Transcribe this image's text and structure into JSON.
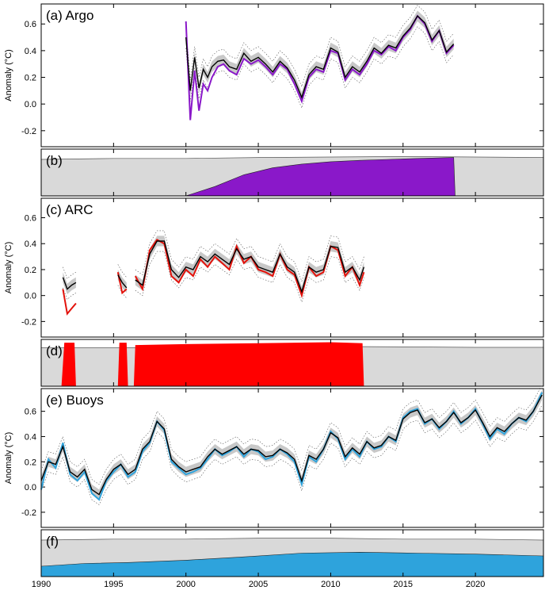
{
  "chart_data": [
    {
      "id": "a",
      "type": "line",
      "title": "(a) Argo",
      "ylabel": "Anomaly (°C)",
      "xlim": [
        1990,
        2024.7
      ],
      "ylim": [
        -0.32,
        0.75
      ],
      "yticks": [
        -0.2,
        0.0,
        0.2,
        0.4,
        0.6
      ],
      "ytick_labels": [
        "-0.2",
        "0.0",
        "0.2",
        "0.4",
        "0.6"
      ],
      "series_color": "#8a18c9",
      "series": [
        {
          "role": "subset",
          "x": [
            2000.0,
            2000.3,
            2000.6,
            2000.9,
            2001.2,
            2001.5,
            2001.8,
            2002.2,
            2002.6,
            2003.0,
            2003.5,
            2004.0,
            2004.5,
            2005.0,
            2005.5,
            2006.0,
            2006.5,
            2007.0,
            2007.5,
            2008.0,
            2008.5,
            2009.0,
            2009.5,
            2010.0,
            2010.5,
            2011.0,
            2011.5,
            2012.0,
            2012.5,
            2013.0,
            2013.5,
            2014.0,
            2014.5,
            2015.0,
            2015.5,
            2016.0,
            2016.5,
            2017.0,
            2017.5,
            2018.0,
            2018.5
          ],
          "y": [
            0.62,
            -0.12,
            0.25,
            -0.05,
            0.15,
            0.1,
            0.2,
            0.28,
            0.3,
            0.25,
            0.22,
            0.34,
            0.3,
            0.33,
            0.28,
            0.22,
            0.3,
            0.26,
            0.15,
            0.02,
            0.2,
            0.26,
            0.24,
            0.4,
            0.38,
            0.18,
            0.26,
            0.22,
            0.3,
            0.4,
            0.37,
            0.43,
            0.4,
            0.5,
            0.56,
            0.66,
            0.6,
            0.47,
            0.55,
            0.38,
            0.44
          ]
        },
        {
          "role": "full",
          "x": [
            2000.0,
            2000.3,
            2000.6,
            2000.9,
            2001.2,
            2001.5,
            2001.8,
            2002.2,
            2002.6,
            2003.0,
            2003.5,
            2004.0,
            2004.5,
            2005.0,
            2005.5,
            2006.0,
            2006.5,
            2007.0,
            2007.5,
            2008.0,
            2008.5,
            2009.0,
            2009.5,
            2010.0,
            2010.5,
            2011.0,
            2011.5,
            2012.0,
            2012.5,
            2013.0,
            2013.5,
            2014.0,
            2014.5,
            2015.0,
            2015.5,
            2016.0,
            2016.5,
            2017.0,
            2017.5,
            2018.0,
            2018.5
          ],
          "y": [
            0.5,
            0.1,
            0.35,
            0.12,
            0.26,
            0.2,
            0.28,
            0.32,
            0.33,
            0.28,
            0.26,
            0.38,
            0.32,
            0.35,
            0.3,
            0.24,
            0.32,
            0.27,
            0.18,
            0.05,
            0.22,
            0.28,
            0.26,
            0.42,
            0.39,
            0.2,
            0.28,
            0.24,
            0.32,
            0.42,
            0.38,
            0.44,
            0.42,
            0.51,
            0.57,
            0.66,
            0.61,
            0.48,
            0.55,
            0.39,
            0.45
          ]
        }
      ]
    },
    {
      "id": "b",
      "type": "area",
      "title": "(b)",
      "xlim": [
        1990,
        2024.7
      ],
      "ylim": [
        0,
        1
      ],
      "fill_color": "#8a18c9",
      "total": {
        "x": [
          1990,
          1995,
          2000,
          2005,
          2010,
          2015,
          2020,
          2024.7
        ],
        "y": [
          0.78,
          0.8,
          0.8,
          0.82,
          0.83,
          0.84,
          0.83,
          0.82
        ]
      },
      "subset": {
        "x": [
          2000,
          2002,
          2004,
          2006,
          2008,
          2010,
          2012,
          2014,
          2016,
          2018.5,
          2018.6
        ],
        "y": [
          0.0,
          0.2,
          0.45,
          0.6,
          0.68,
          0.73,
          0.76,
          0.78,
          0.8,
          0.82,
          0.0
        ]
      }
    },
    {
      "id": "c",
      "type": "line",
      "title": "(c) ARC",
      "ylabel": "Anomaly (°C)",
      "xlim": [
        1990,
        2024.7
      ],
      "ylim": [
        -0.32,
        0.75
      ],
      "yticks": [
        -0.2,
        0.0,
        0.2,
        0.4,
        0.6
      ],
      "ytick_labels": [
        "-0.2",
        "0.0",
        "0.2",
        "0.4",
        "0.6"
      ],
      "series_color": "#e3120b",
      "series": [
        {
          "role": "subset",
          "segments": [
            {
              "x": [
                1991.5,
                1991.8,
                1992.1,
                1992.4
              ],
              "y": [
                0.05,
                -0.14,
                -0.1,
                -0.06
              ]
            },
            {
              "x": [
                1995.3,
                1995.6,
                1995.9
              ],
              "y": [
                0.18,
                0.02,
                0.05
              ]
            },
            {
              "x": [
                1996.5,
                1997.0,
                1997.5,
                1998.0,
                1998.5,
                1999.0,
                1999.5,
                2000.0,
                2000.5,
                2001.0,
                2001.5,
                2002.0,
                2002.5,
                2003.0,
                2003.5,
                2004.0,
                2004.5,
                2005.0,
                2005.5,
                2006.0,
                2006.5,
                2007.0,
                2007.5,
                2008.0,
                2008.5,
                2009.0,
                2009.5,
                2010.0,
                2010.5,
                2011.0,
                2011.5,
                2012.0,
                2012.3
              ],
              "y": [
                0.15,
                0.05,
                0.35,
                0.43,
                0.4,
                0.15,
                0.1,
                0.2,
                0.15,
                0.28,
                0.22,
                0.3,
                0.25,
                0.2,
                0.38,
                0.25,
                0.3,
                0.2,
                0.18,
                0.15,
                0.32,
                0.2,
                0.16,
                0.0,
                0.22,
                0.15,
                0.18,
                0.38,
                0.35,
                0.15,
                0.22,
                0.08,
                0.18
              ]
            }
          ]
        },
        {
          "role": "full",
          "segments": [
            {
              "x": [
                1991.5,
                1991.8,
                1992.1,
                1992.4
              ],
              "y": [
                0.14,
                0.05,
                0.08,
                0.1
              ]
            },
            {
              "x": [
                1995.3,
                1995.6,
                1995.9
              ],
              "y": [
                0.16,
                0.1,
                0.06
              ]
            },
            {
              "x": [
                1996.5,
                1997.0,
                1997.5,
                1998.0,
                1998.5,
                1999.0,
                1999.5,
                2000.0,
                2000.5,
                2001.0,
                2001.5,
                2002.0,
                2002.5,
                2003.0,
                2003.5,
                2004.0,
                2004.5,
                2005.0,
                2005.5,
                2006.0,
                2006.5,
                2007.0,
                2007.5,
                2008.0,
                2008.5,
                2009.0,
                2009.5,
                2010.0,
                2010.5,
                2011.0,
                2011.5,
                2012.0,
                2012.3
              ],
              "y": [
                0.12,
                0.08,
                0.32,
                0.42,
                0.42,
                0.2,
                0.14,
                0.22,
                0.2,
                0.3,
                0.26,
                0.32,
                0.28,
                0.24,
                0.36,
                0.28,
                0.3,
                0.22,
                0.2,
                0.18,
                0.32,
                0.22,
                0.18,
                0.03,
                0.22,
                0.18,
                0.2,
                0.38,
                0.37,
                0.18,
                0.22,
                0.12,
                0.22
              ]
            }
          ]
        }
      ]
    },
    {
      "id": "d",
      "type": "area",
      "title": "(d)",
      "xlim": [
        1990,
        2024.7
      ],
      "ylim": [
        0,
        1
      ],
      "fill_color": "#ff0000",
      "total": {
        "x": [
          1990,
          1995,
          2000,
          2005,
          2010,
          2015,
          2020,
          2024.7
        ],
        "y": [
          0.82,
          0.82,
          0.83,
          0.84,
          0.85,
          0.84,
          0.83,
          0.83
        ]
      },
      "subset_blocks": [
        {
          "x": [
            1991.4,
            1991.6,
            1992.3,
            1992.4
          ],
          "y": [
            0.0,
            0.93,
            0.93,
            0.0
          ]
        },
        {
          "x": [
            1995.3,
            1995.4,
            1995.9,
            1996.0
          ],
          "y": [
            0.0,
            0.93,
            0.93,
            0.0
          ]
        },
        {
          "x": [
            1996.4,
            1996.5,
            2000,
            2005,
            2010,
            2012.2,
            2012.3
          ],
          "y": [
            0.0,
            0.88,
            0.9,
            0.92,
            0.94,
            0.92,
            0.0
          ]
        }
      ]
    },
    {
      "id": "e",
      "type": "line",
      "title": "(e) Buoys",
      "ylabel": "Anomaly (°C)",
      "xlim": [
        1990,
        2024.7
      ],
      "ylim": [
        -0.32,
        0.78
      ],
      "yticks": [
        -0.2,
        0.0,
        0.2,
        0.4,
        0.6
      ],
      "ytick_labels": [
        "-0.2",
        "0.0",
        "0.2",
        "0.4",
        "0.6"
      ],
      "series_color": "#2ea3dc",
      "series": [
        {
          "role": "subset",
          "x": [
            1990.0,
            1990.5,
            1991.0,
            1991.5,
            1992.0,
            1992.5,
            1993.0,
            1993.5,
            1994.0,
            1994.5,
            1995.0,
            1995.5,
            1996.0,
            1996.5,
            1997.0,
            1997.5,
            1998.0,
            1998.5,
            1999.0,
            1999.5,
            2000.0,
            2000.5,
            2001.0,
            2001.5,
            2002.0,
            2002.5,
            2003.0,
            2003.5,
            2004.0,
            2004.5,
            2005.0,
            2005.5,
            2006.0,
            2006.5,
            2007.0,
            2007.5,
            2008.0,
            2008.5,
            2009.0,
            2009.5,
            2010.0,
            2010.5,
            2011.0,
            2011.5,
            2012.0,
            2012.5,
            2013.0,
            2013.5,
            2014.0,
            2014.5,
            2015.0,
            2015.5,
            2016.0,
            2016.5,
            2017.0,
            2017.5,
            2018.0,
            2018.5,
            2019.0,
            2019.5,
            2020.0,
            2020.5,
            2021.0,
            2021.5,
            2022.0,
            2022.5,
            2023.0,
            2023.5,
            2024.0,
            2024.6
          ],
          "y": [
            -0.02,
            0.22,
            0.15,
            0.35,
            0.1,
            0.05,
            0.12,
            -0.05,
            -0.1,
            0.05,
            0.12,
            0.18,
            0.08,
            0.12,
            0.28,
            0.35,
            0.52,
            0.45,
            0.2,
            0.15,
            0.1,
            0.12,
            0.15,
            0.22,
            0.3,
            0.25,
            0.28,
            0.32,
            0.24,
            0.3,
            0.28,
            0.22,
            0.24,
            0.3,
            0.26,
            0.2,
            0.02,
            0.24,
            0.2,
            0.3,
            0.44,
            0.38,
            0.22,
            0.3,
            0.24,
            0.36,
            0.3,
            0.32,
            0.4,
            0.36,
            0.55,
            0.6,
            0.62,
            0.5,
            0.54,
            0.46,
            0.52,
            0.6,
            0.5,
            0.55,
            0.62,
            0.5,
            0.38,
            0.46,
            0.42,
            0.5,
            0.55,
            0.52,
            0.6,
            0.75
          ]
        },
        {
          "role": "full",
          "x": [
            1990.0,
            1990.5,
            1991.0,
            1991.5,
            1992.0,
            1992.5,
            1993.0,
            1993.5,
            1994.0,
            1994.5,
            1995.0,
            1995.5,
            1996.0,
            1996.5,
            1997.0,
            1997.5,
            1998.0,
            1998.5,
            1999.0,
            1999.5,
            2000.0,
            2000.5,
            2001.0,
            2001.5,
            2002.0,
            2002.5,
            2003.0,
            2003.5,
            2004.0,
            2004.5,
            2005.0,
            2005.5,
            2006.0,
            2006.5,
            2007.0,
            2007.5,
            2008.0,
            2008.5,
            2009.0,
            2009.5,
            2010.0,
            2010.5,
            2011.0,
            2011.5,
            2012.0,
            2012.5,
            2013.0,
            2013.5,
            2014.0,
            2014.5,
            2015.0,
            2015.5,
            2016.0,
            2016.5,
            2017.0,
            2017.5,
            2018.0,
            2018.5,
            2019.0,
            2019.5,
            2020.0,
            2020.5,
            2021.0,
            2021.5,
            2022.0,
            2022.5,
            2023.0,
            2023.5,
            2024.0,
            2024.6
          ],
          "y": [
            0.05,
            0.2,
            0.18,
            0.32,
            0.12,
            0.08,
            0.14,
            -0.02,
            -0.06,
            0.06,
            0.14,
            0.18,
            0.1,
            0.14,
            0.3,
            0.36,
            0.52,
            0.46,
            0.22,
            0.16,
            0.12,
            0.14,
            0.16,
            0.24,
            0.3,
            0.26,
            0.29,
            0.32,
            0.26,
            0.3,
            0.29,
            0.24,
            0.25,
            0.3,
            0.27,
            0.22,
            0.05,
            0.25,
            0.22,
            0.3,
            0.43,
            0.39,
            0.24,
            0.31,
            0.26,
            0.36,
            0.31,
            0.33,
            0.4,
            0.37,
            0.54,
            0.59,
            0.61,
            0.51,
            0.54,
            0.47,
            0.52,
            0.59,
            0.51,
            0.55,
            0.61,
            0.51,
            0.4,
            0.47,
            0.44,
            0.5,
            0.55,
            0.53,
            0.6,
            0.73
          ]
        }
      ]
    },
    {
      "id": "f",
      "type": "area",
      "title": "(f)",
      "xlim": [
        1990,
        2024.7
      ],
      "ylim": [
        0,
        1
      ],
      "fill_color": "#2ea3dc",
      "x_ticks": [
        1990,
        1995,
        2000,
        2005,
        2010,
        2015,
        2020
      ],
      "x_tick_labels": [
        "1990",
        "1995",
        "2000",
        "2005",
        "2010",
        "2015",
        "2020"
      ],
      "total": {
        "x": [
          1990,
          1995,
          2000,
          2005,
          2010,
          2015,
          2020,
          2024.7
        ],
        "y": [
          0.78,
          0.8,
          0.8,
          0.82,
          0.82,
          0.8,
          0.8,
          0.78
        ]
      },
      "subset": {
        "x": [
          1990,
          1993,
          1996,
          2000,
          2004,
          2008,
          2012,
          2016,
          2020,
          2024.7
        ],
        "y": [
          0.22,
          0.28,
          0.3,
          0.35,
          0.42,
          0.5,
          0.52,
          0.5,
          0.48,
          0.44
        ]
      }
    }
  ]
}
